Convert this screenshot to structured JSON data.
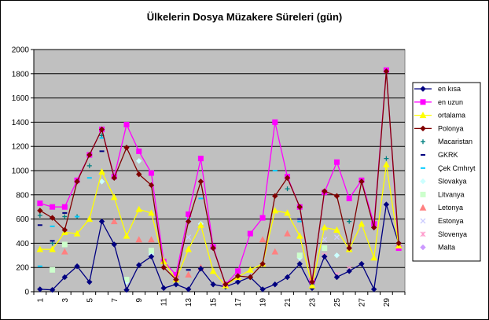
{
  "chart_data": {
    "type": "line",
    "title": "Ülkelerin Dosya Müzakere Süreleri (gün)",
    "xlabel": "",
    "ylabel": "",
    "x": [
      1,
      2,
      3,
      4,
      5,
      6,
      7,
      8,
      9,
      10,
      11,
      12,
      13,
      14,
      15,
      16,
      17,
      18,
      19,
      20,
      21,
      22,
      23,
      24,
      25,
      26,
      27,
      28,
      29,
      30
    ],
    "x_tick_labels": [
      "1",
      "3",
      "5",
      "7",
      "9",
      "11",
      "13",
      "15",
      "17",
      "19",
      "21",
      "23",
      "25",
      "27",
      "29"
    ],
    "ylim": [
      0,
      2000
    ],
    "y_ticks": [
      "0",
      "200",
      "400",
      "600",
      "800",
      "1000",
      "1200",
      "1400",
      "1600",
      "1800",
      "2000"
    ],
    "grid": "horizontal",
    "legend_position": "right",
    "series": [
      {
        "name": "en kısa",
        "color": "#000080",
        "marker": "diamond",
        "line": true,
        "values": [
          20,
          15,
          120,
          210,
          80,
          580,
          390,
          15,
          220,
          290,
          30,
          60,
          20,
          190,
          60,
          40,
          80,
          120,
          20,
          60,
          120,
          230,
          30,
          290,
          120,
          170,
          230,
          20,
          720,
          400
        ]
      },
      {
        "name": "en uzun",
        "color": "#ff00ff",
        "marker": "square",
        "line": true,
        "values": [
          730,
          700,
          700,
          920,
          1130,
          1340,
          950,
          1380,
          1160,
          980,
          250,
          140,
          640,
          1100,
          370,
          60,
          170,
          480,
          610,
          1400,
          950,
          700,
          90,
          820,
          1070,
          770,
          920,
          560,
          1830,
          360
        ]
      },
      {
        "name": "ortalama",
        "color": "#ffff00",
        "marker": "triangle",
        "line": true,
        "values": [
          350,
          350,
          490,
          480,
          600,
          990,
          780,
          460,
          680,
          650,
          250,
          100,
          350,
          550,
          170,
          50,
          120,
          180,
          230,
          670,
          650,
          460,
          50,
          530,
          510,
          350,
          560,
          280,
          1050,
          380
        ]
      },
      {
        "name": "Polonya",
        "color": "#800000",
        "marker": "diamond",
        "line": true,
        "values": [
          670,
          610,
          510,
          910,
          1130,
          1340,
          940,
          1190,
          970,
          880,
          200,
          100,
          580,
          910,
          360,
          60,
          130,
          120,
          230,
          790,
          940,
          700,
          80,
          830,
          790,
          360,
          910,
          530,
          1820,
          400
        ]
      },
      {
        "name": "Macaristan",
        "color": "#008080",
        "marker": "plus",
        "line": false,
        "values": [
          630,
          400,
          620,
          620,
          1040,
          1290,
          null,
          null,
          null,
          null,
          null,
          null,
          null,
          null,
          null,
          null,
          null,
          null,
          null,
          null,
          850,
          null,
          null,
          null,
          null,
          580,
          null,
          null,
          1100,
          null
        ]
      },
      {
        "name": "GKRK",
        "color": "#000080",
        "marker": "dash",
        "line": false,
        "values": [
          550,
          420,
          650,
          null,
          null,
          1160,
          null,
          null,
          null,
          null,
          null,
          null,
          180,
          null,
          null,
          null,
          null,
          null,
          null,
          null,
          null,
          600,
          null,
          null,
          null,
          null,
          null,
          null,
          null,
          null
        ]
      },
      {
        "name": "Çek Cmhryt",
        "color": "#00ccff",
        "marker": "dash",
        "line": false,
        "values": [
          210,
          540,
          700,
          620,
          940,
          1270,
          null,
          null,
          null,
          null,
          null,
          null,
          600,
          770,
          null,
          null,
          null,
          null,
          null,
          1000,
          null,
          580,
          null,
          null,
          null,
          null,
          null,
          null,
          null,
          null
        ]
      },
      {
        "name": "Slovakya",
        "color": "#ccffff",
        "marker": "diamond",
        "line": false,
        "values": [
          null,
          null,
          null,
          null,
          null,
          910,
          null,
          80,
          1080,
          310,
          null,
          null,
          null,
          560,
          null,
          null,
          null,
          null,
          null,
          null,
          null,
          280,
          null,
          null,
          300,
          null,
          null,
          null,
          null,
          null
        ]
      },
      {
        "name": "Litvanya",
        "color": "#ccffcc",
        "marker": "square",
        "line": false,
        "values": [
          null,
          180,
          390,
          null,
          null,
          null,
          null,
          100,
          null,
          340,
          null,
          null,
          null,
          null,
          null,
          null,
          null,
          null,
          null,
          null,
          null,
          300,
          null,
          360,
          null,
          null,
          null,
          null,
          null,
          null
        ]
      },
      {
        "name": "Letonya",
        "color": "#ff8080",
        "marker": "triangle",
        "line": false,
        "values": [
          null,
          null,
          330,
          null,
          null,
          null,
          580,
          null,
          430,
          430,
          null,
          null,
          140,
          200,
          null,
          null,
          null,
          null,
          430,
          330,
          480,
          null,
          null,
          null,
          null,
          null,
          null,
          null,
          null,
          null
        ]
      },
      {
        "name": "Estonya",
        "color": "#ccccff",
        "marker": "x",
        "line": false,
        "values": [
          null,
          null,
          null,
          null,
          null,
          null,
          null,
          null,
          null,
          null,
          null,
          null,
          450,
          null,
          null,
          null,
          null,
          null,
          null,
          null,
          null,
          null,
          null,
          430,
          450,
          null,
          null,
          null,
          null,
          null
        ]
      },
      {
        "name": "Slovenya",
        "color": "#ff99cc",
        "marker": "star",
        "line": false,
        "values": [
          null,
          null,
          null,
          null,
          null,
          null,
          null,
          null,
          null,
          null,
          null,
          null,
          null,
          null,
          null,
          null,
          null,
          null,
          null,
          null,
          null,
          null,
          null,
          300,
          140,
          190,
          null,
          null,
          null,
          null
        ]
      },
      {
        "name": "Malta",
        "color": "#cc99ff",
        "marker": "diamond",
        "line": false,
        "values": [
          null,
          null,
          null,
          null,
          null,
          null,
          null,
          null,
          null,
          null,
          null,
          null,
          null,
          null,
          null,
          null,
          null,
          null,
          null,
          null,
          null,
          null,
          null,
          null,
          null,
          null,
          null,
          null,
          null,
          null
        ]
      }
    ]
  }
}
